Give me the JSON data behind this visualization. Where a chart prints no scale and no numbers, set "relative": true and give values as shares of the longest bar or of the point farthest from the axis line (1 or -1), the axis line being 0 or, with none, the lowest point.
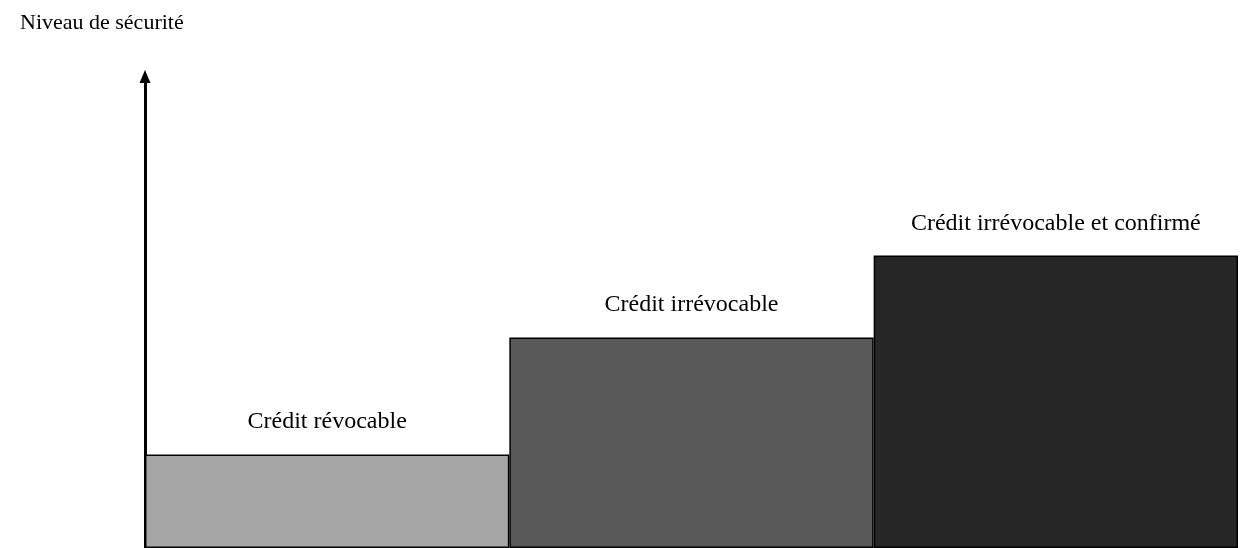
{
  "chart_data": {
    "type": "bar",
    "annotations": [
      "Niveau de sécurité"
    ],
    "relative": true,
    "categories": [
      "Crédit révocable",
      "Crédit irrévocable",
      "Crédit irrévocable et confirmé"
    ],
    "values": [
      0.32,
      0.72,
      1
    ],
    "colors": [
      "#a6a6a6",
      "#595959",
      "#262626"
    ]
  }
}
